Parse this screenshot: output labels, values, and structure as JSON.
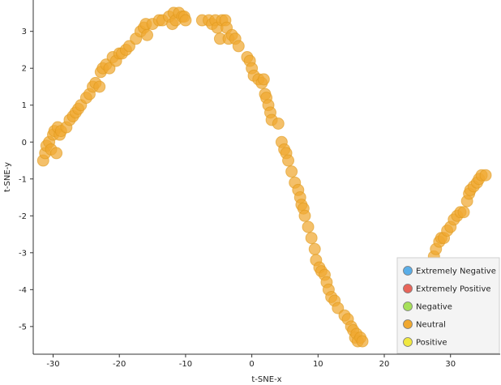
{
  "chart_data": {
    "type": "scatter",
    "xlabel": "t-SNE-x",
    "ylabel": "t-SNE-y",
    "xlim": [
      -33,
      37.5
    ],
    "ylim": [
      -5.75,
      3.85
    ],
    "x_ticks": [
      "-30",
      "-20",
      "-10",
      "0",
      "10",
      "20",
      "30"
    ],
    "x_tick_values": [
      -30,
      -20,
      -10,
      0,
      10,
      20,
      30
    ],
    "y_ticks": [
      "3",
      "2",
      "1",
      "0",
      "-1",
      "-2",
      "-3",
      "-4",
      "-5"
    ],
    "y_tick_values": [
      3,
      2,
      1,
      0,
      -1,
      -2,
      -3,
      -4,
      -5
    ],
    "legend_position": "bottom-right",
    "series": [
      {
        "name": "Extremely Negative",
        "color": "#5aaee8",
        "points": []
      },
      {
        "name": "Extremely Positive",
        "color": "#e8655a",
        "points": []
      },
      {
        "name": "Negative",
        "color": "#a6e05a",
        "points": []
      },
      {
        "name": "Neutral",
        "color": "#f0a830",
        "points": [
          [
            -31.5,
            -0.5
          ],
          [
            -31.2,
            -0.3
          ],
          [
            -31,
            -0.1
          ],
          [
            -30.6,
            0
          ],
          [
            -30.3,
            -0.2
          ],
          [
            -30,
            0.2
          ],
          [
            -29.8,
            0.3
          ],
          [
            -29.5,
            -0.3
          ],
          [
            -29.3,
            0.4
          ],
          [
            -29,
            0.2
          ],
          [
            -28.8,
            0.3
          ],
          [
            -28,
            0.4
          ],
          [
            -27.5,
            0.6
          ],
          [
            -27,
            0.7
          ],
          [
            -26.6,
            0.8
          ],
          [
            -26.2,
            0.9
          ],
          [
            -25.8,
            1.0
          ],
          [
            -25,
            1.2
          ],
          [
            -24.5,
            1.3
          ],
          [
            -24,
            1.5
          ],
          [
            -23.6,
            1.6
          ],
          [
            -23,
            1.5
          ],
          [
            -22.8,
            1.9
          ],
          [
            -22.5,
            2.0
          ],
          [
            -22,
            2.1
          ],
          [
            -21.5,
            2.0
          ],
          [
            -21,
            2.3
          ],
          [
            -20.5,
            2.2
          ],
          [
            -20,
            2.4
          ],
          [
            -19.6,
            2.4
          ],
          [
            -19,
            2.5
          ],
          [
            -18.5,
            2.6
          ],
          [
            -17.5,
            2.8
          ],
          [
            -16.8,
            3.0
          ],
          [
            -16.3,
            3.1
          ],
          [
            -16,
            3.2
          ],
          [
            -15.8,
            2.9
          ],
          [
            -15,
            3.2
          ],
          [
            -14,
            3.3
          ],
          [
            -13.5,
            3.3
          ],
          [
            -12.5,
            3.4
          ],
          [
            -12,
            3.2
          ],
          [
            -11.8,
            3.5
          ],
          [
            -11.5,
            3.3
          ],
          [
            -11,
            3.5
          ],
          [
            -10.5,
            3.4
          ],
          [
            -10.2,
            3.4
          ],
          [
            -10,
            3.3
          ],
          [
            -7.5,
            3.3
          ],
          [
            -6.5,
            3.3
          ],
          [
            -6,
            3.2
          ],
          [
            -5.5,
            3.3
          ],
          [
            -5.2,
            3.1
          ],
          [
            -4.8,
            2.8
          ],
          [
            -4.5,
            3.3
          ],
          [
            -4,
            3.3
          ],
          [
            -3.8,
            3.1
          ],
          [
            -3.5,
            2.8
          ],
          [
            -3,
            2.9
          ],
          [
            -2.5,
            2.8
          ],
          [
            -2,
            2.6
          ],
          [
            -0.7,
            2.3
          ],
          [
            -0.3,
            2.2
          ],
          [
            0,
            2.0
          ],
          [
            0.3,
            1.8
          ],
          [
            1,
            1.7
          ],
          [
            1.5,
            1.6
          ],
          [
            1.8,
            1.7
          ],
          [
            2,
            1.3
          ],
          [
            2.2,
            1.2
          ],
          [
            2.5,
            1.0
          ],
          [
            2.8,
            0.8
          ],
          [
            3,
            0.6
          ],
          [
            4,
            0.5
          ],
          [
            4.5,
            0
          ],
          [
            4.9,
            -0.2
          ],
          [
            5.2,
            -0.3
          ],
          [
            5.5,
            -0.5
          ],
          [
            6,
            -0.8
          ],
          [
            6.5,
            -1.1
          ],
          [
            7,
            -1.3
          ],
          [
            7.3,
            -1.5
          ],
          [
            7.5,
            -1.7
          ],
          [
            7.8,
            -1.8
          ],
          [
            8,
            -2.0
          ],
          [
            8.5,
            -2.3
          ],
          [
            9,
            -2.6
          ],
          [
            9.5,
            -2.9
          ],
          [
            9.7,
            -3.2
          ],
          [
            10.2,
            -3.4
          ],
          [
            10.5,
            -3.5
          ],
          [
            11,
            -3.6
          ],
          [
            11.3,
            -3.8
          ],
          [
            11.6,
            -4.0
          ],
          [
            12,
            -4.2
          ],
          [
            12.5,
            -4.3
          ],
          [
            13,
            -4.5
          ],
          [
            14,
            -4.7
          ],
          [
            14.5,
            -4.8
          ],
          [
            15,
            -5.0
          ],
          [
            15.3,
            -5.1
          ],
          [
            15.6,
            -5.3
          ],
          [
            15.8,
            -5.2
          ],
          [
            16,
            -5.4
          ],
          [
            16.4,
            -5.3
          ],
          [
            16.7,
            -5.4
          ],
          [
            27,
            -3.3
          ],
          [
            27.5,
            -3.1
          ],
          [
            27.8,
            -2.9
          ],
          [
            28.3,
            -2.7
          ],
          [
            28.6,
            -2.6
          ],
          [
            29,
            -2.6
          ],
          [
            29.5,
            -2.4
          ],
          [
            30,
            -2.3
          ],
          [
            30.5,
            -2.1
          ],
          [
            31,
            -2.0
          ],
          [
            31.5,
            -1.9
          ],
          [
            32,
            -1.9
          ],
          [
            32.5,
            -1.6
          ],
          [
            32.8,
            -1.4
          ],
          [
            33,
            -1.3
          ],
          [
            33.5,
            -1.2
          ],
          [
            34,
            -1.1
          ],
          [
            34.3,
            -1.0
          ],
          [
            34.7,
            -0.9
          ],
          [
            35.3,
            -0.9
          ]
        ]
      },
      {
        "name": "Positive",
        "color": "#f0e840",
        "points": []
      }
    ]
  }
}
